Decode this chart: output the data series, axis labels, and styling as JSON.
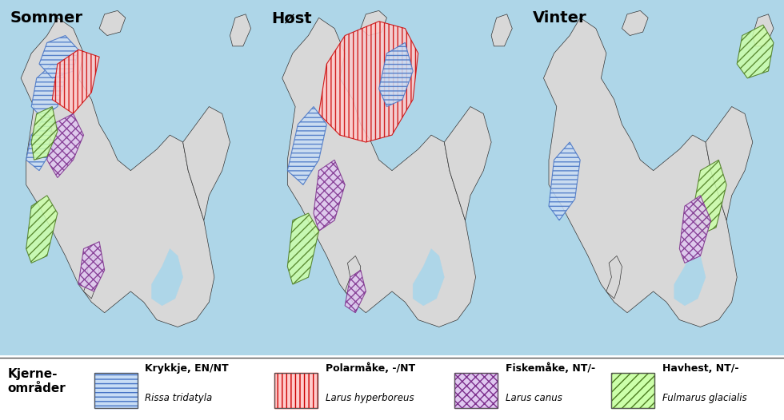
{
  "panel_titles": [
    "Sommer",
    "Høst",
    "Vinter"
  ],
  "background_color": "#aed6e8",
  "land_color": "#d8d8d8",
  "border_color": "#555555",
  "legend_title": "Kjerne-\nområder",
  "legend_items": [
    {
      "label1": "Krykkje, EN/NT",
      "label2": "Rissa tridatyla",
      "hatch": "---",
      "facecolor": "#c8ddf5",
      "edgecolor": "#4472c4"
    },
    {
      "label1": "Polarmåke, -/NT",
      "label2": "Larus hyperboreus",
      "hatch": "|||",
      "facecolor": "#ffcccc",
      "edgecolor": "#cc0000"
    },
    {
      "label1": "Fiskemåke, NT/-",
      "label2": "Larus canus",
      "hatch": "xxx",
      "facecolor": "#e0c8f0",
      "edgecolor": "#7b2d8b"
    },
    {
      "label1": "Havhest, NT/-",
      "label2": "Fulmarus glacialis",
      "hatch": "///",
      "facecolor": "#ccffaa",
      "edgecolor": "#4a7a1e"
    }
  ],
  "figsize": [
    9.8,
    5.26
  ],
  "dpi": 100
}
